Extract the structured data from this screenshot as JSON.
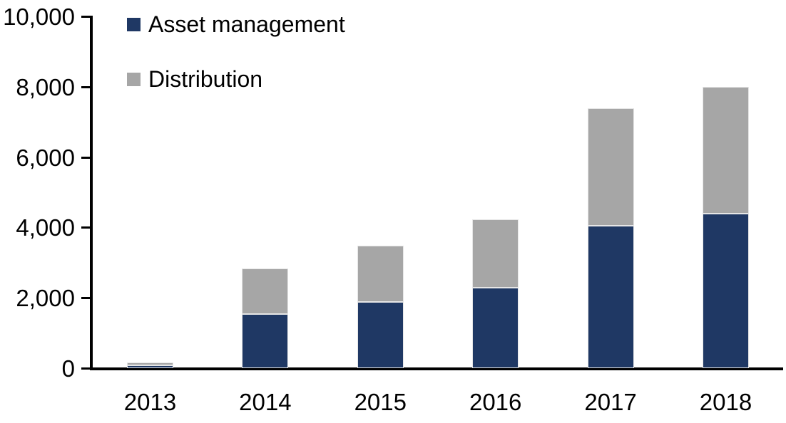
{
  "colors": {
    "asset_management": "#1f3864",
    "distribution": "#a6a6a6",
    "axis": "#000000",
    "bar_border": "#e6e6e6",
    "background": "#ffffff"
  },
  "legend": {
    "items": [
      {
        "label": "Asset management",
        "color": "#1f3864"
      },
      {
        "label": "Distribution",
        "color": "#a6a6a6"
      }
    ]
  },
  "chart_data": {
    "type": "bar",
    "stacked": true,
    "title": "",
    "xlabel": "",
    "ylabel": "",
    "grid": false,
    "legend_position": "top-left",
    "categories": [
      "2013",
      "2014",
      "2015",
      "2016",
      "2017",
      "2018"
    ],
    "series": [
      {
        "name": "Asset management",
        "color": "#1f3864",
        "values": [
          90,
          1550,
          1900,
          2300,
          4050,
          4400
        ]
      },
      {
        "name": "Distribution",
        "color": "#a6a6a6",
        "values": [
          90,
          1300,
          1600,
          1950,
          3350,
          3600
        ]
      }
    ],
    "totals": [
      180,
      2850,
      3500,
      4250,
      7400,
      8000
    ],
    "ylim": [
      0,
      10000
    ],
    "ytick_values": [
      0,
      2000,
      4000,
      6000,
      8000,
      10000
    ],
    "ytick_labels": [
      "0",
      "2,000",
      "4,000",
      "6,000",
      "8,000",
      "10,000"
    ]
  }
}
